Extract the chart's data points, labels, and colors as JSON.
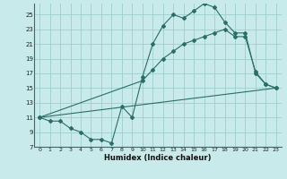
{
  "xlabel": "Humidex (Indice chaleur)",
  "bg_color": "#c8eaea",
  "grid_color": "#9ecece",
  "line_color": "#2a6e68",
  "xlim": [
    -0.5,
    23.5
  ],
  "ylim": [
    7,
    26.5
  ],
  "yticks": [
    7,
    9,
    11,
    13,
    15,
    17,
    19,
    21,
    23,
    25
  ],
  "xticks": [
    0,
    1,
    2,
    3,
    4,
    5,
    6,
    7,
    8,
    9,
    10,
    11,
    12,
    13,
    14,
    15,
    16,
    17,
    18,
    19,
    20,
    21,
    22,
    23
  ],
  "line1_x": [
    0,
    1,
    2,
    3,
    4,
    5,
    6,
    7,
    8,
    9,
    10,
    11,
    12,
    13,
    14,
    15,
    16,
    17,
    18,
    19,
    20,
    21,
    22,
    23
  ],
  "line1_y": [
    11,
    10.5,
    10.5,
    9.5,
    9,
    8,
    8,
    7.5,
    12.5,
    11,
    16.5,
    21,
    23.5,
    25,
    24.5,
    25.5,
    26.5,
    26,
    24,
    22.5,
    22.5,
    17,
    15.5,
    15
  ],
  "line2_x": [
    0,
    10,
    11,
    12,
    13,
    14,
    15,
    16,
    17,
    18,
    19,
    20,
    21,
    22,
    23
  ],
  "line2_y": [
    11,
    16,
    17.5,
    19,
    20,
    21,
    21.5,
    22,
    22.5,
    23,
    22,
    22,
    17.2,
    15.5,
    15
  ],
  "line3_x": [
    0,
    23
  ],
  "line3_y": [
    11,
    15
  ]
}
